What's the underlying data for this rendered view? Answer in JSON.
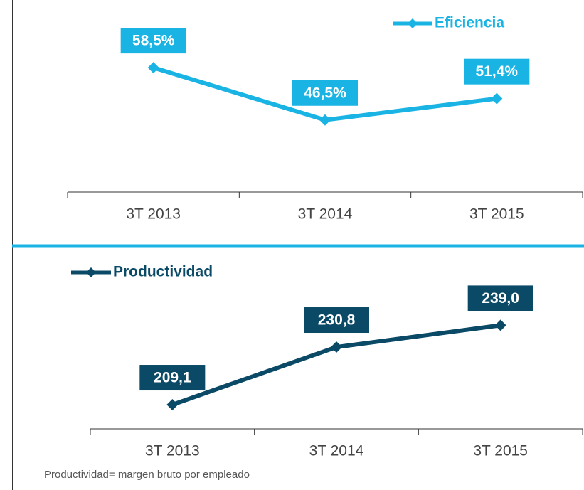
{
  "chart_data": [
    {
      "type": "line",
      "categories": [
        "3T 2013",
        "3T 2014",
        "3T 2015"
      ],
      "series": [
        {
          "name": "Eficiencia",
          "color": "#19b4e3",
          "values": [
            58.5,
            46.5,
            51.4
          ],
          "value_labels": [
            "58,5%",
            "46,5%",
            "51,4%"
          ]
        }
      ],
      "ylim": [
        30,
        74
      ],
      "legend": "top-right"
    },
    {
      "type": "line",
      "categories": [
        "3T 2013",
        "3T 2014",
        "3T 2015"
      ],
      "series": [
        {
          "name": "Productividad",
          "color": "#0b4a66",
          "values": [
            209.1,
            230.8,
            239.0
          ],
          "value_labels": [
            "209,1",
            "230,8",
            "239,0"
          ]
        }
      ],
      "ylim": [
        200,
        260
      ],
      "legend": "top-left"
    }
  ],
  "footnote": "Productividad= margen bruto por empleado"
}
